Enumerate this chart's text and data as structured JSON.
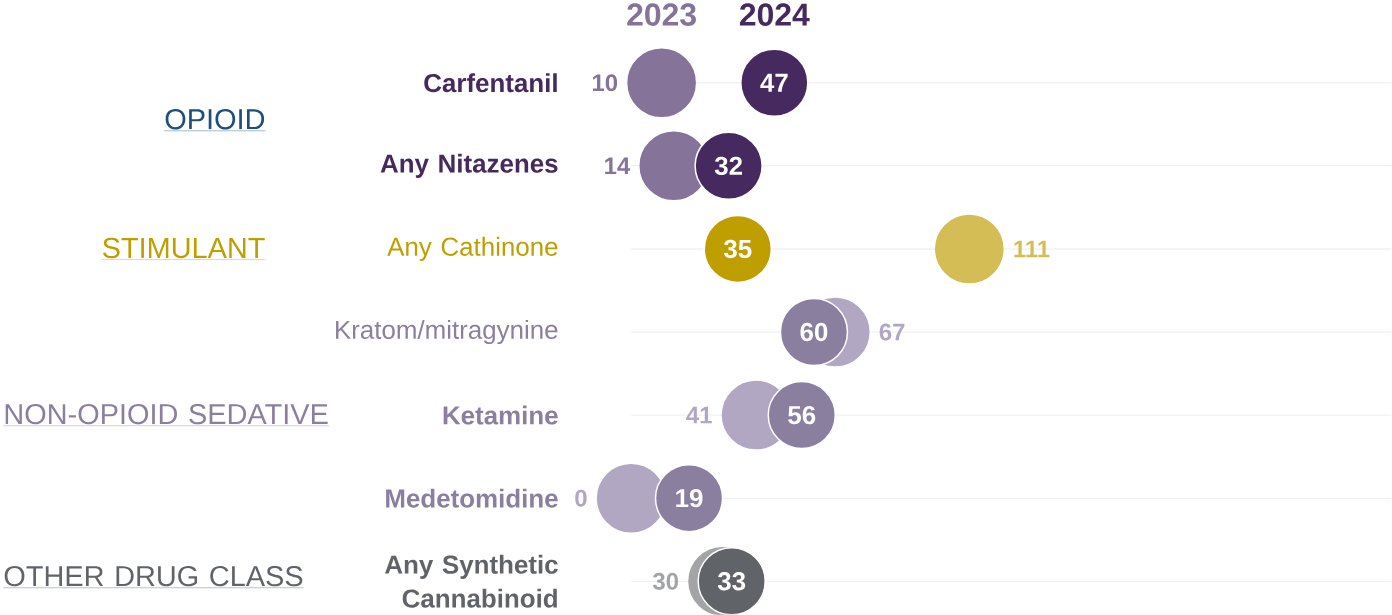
{
  "chart_data": {
    "type": "scatter",
    "orientation": "horizontal",
    "marker": "circle",
    "grid": "y",
    "legend": "top",
    "data_labels": true,
    "categories": [
      "Carfentanil",
      "Any Nitazenes",
      "Any Cathinone",
      "Kratom/mitragynine",
      "Ketamine",
      "Medetomidine",
      "Any Synthetic Cannabinoid"
    ],
    "series": [
      {
        "name": "2023",
        "color": "#85739a",
        "values": [
          10,
          14,
          111,
          67,
          41,
          0,
          30
        ],
        "colors": [
          "#85739a",
          "#85739a",
          "#d4bd55",
          "#b1a7c2",
          "#b1a7c2",
          "#b1a7c2",
          "#a3a4a7"
        ]
      },
      {
        "name": "2024",
        "color": "#46295e",
        "values": [
          47,
          32,
          35,
          60,
          56,
          19,
          33
        ],
        "colors": [
          "#46295e",
          "#46295e",
          "#bf9e00",
          "#8b7fa0",
          "#8b7fa0",
          "#8b7fa0",
          "#606368"
        ]
      }
    ],
    "annotations": [
      "OPIOID",
      "STIMULANT",
      "NON-OPIOID SEDATIVE",
      "OTHER DRUG CLASS"
    ]
  }
}
